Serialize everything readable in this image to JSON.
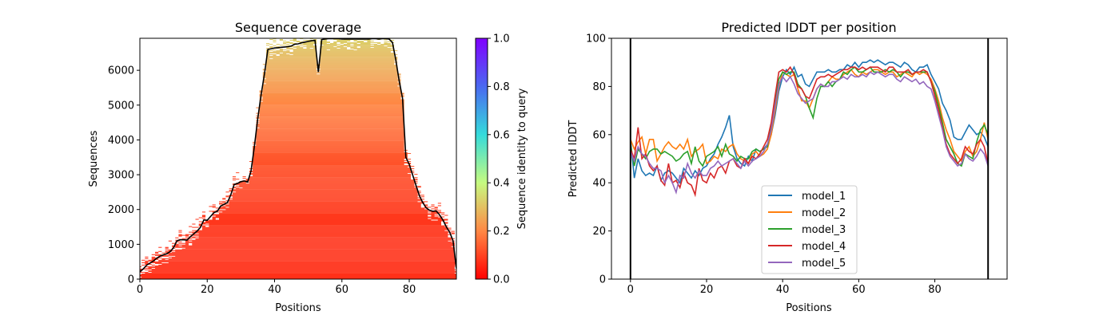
{
  "figure": {
    "background": "#ffffff"
  },
  "chart_data": [
    {
      "type": "heatmap",
      "title": "Sequence coverage",
      "xlabel": "Positions",
      "ylabel": "Sequences",
      "colorbar_label": "Sequence identity to query",
      "colormap": "rainbow_r",
      "xlim": [
        0,
        94
      ],
      "ylim": [
        0,
        6920
      ],
      "xticks": [
        0,
        20,
        40,
        60,
        80
      ],
      "yticks": [
        0,
        1000,
        2000,
        3000,
        4000,
        5000,
        6000
      ],
      "colorbar_ticks": [
        "0.0",
        "0.2",
        "0.4",
        "0.6",
        "0.8",
        "1.0"
      ],
      "coverage_line": {
        "color": "#000000",
        "x": [
          0,
          1,
          2,
          3,
          4,
          5,
          6,
          7,
          8,
          9,
          10,
          11,
          12,
          13,
          14,
          15,
          16,
          17,
          18,
          19,
          20,
          21,
          22,
          23,
          24,
          25,
          26,
          27,
          28,
          29,
          30,
          31,
          32,
          33,
          34,
          35,
          36,
          37,
          38,
          39,
          40,
          41,
          42,
          43,
          44,
          45,
          46,
          47,
          48,
          49,
          50,
          51,
          52,
          53,
          54,
          55,
          56,
          57,
          58,
          59,
          60,
          61,
          62,
          63,
          64,
          65,
          66,
          67,
          68,
          69,
          70,
          71,
          72,
          73,
          74,
          75,
          76,
          77,
          78,
          79,
          80,
          81,
          82,
          83,
          84,
          85,
          86,
          87,
          88,
          89,
          90,
          91,
          92,
          93,
          94
        ],
        "y": [
          210,
          290,
          400,
          460,
          520,
          600,
          660,
          700,
          730,
          790,
          900,
          1100,
          1130,
          1130,
          1120,
          1220,
          1300,
          1380,
          1490,
          1700,
          1690,
          1800,
          1910,
          1950,
          2100,
          2150,
          2200,
          2420,
          2720,
          2750,
          2800,
          2820,
          2790,
          3100,
          3800,
          4600,
          5300,
          5900,
          6600,
          6620,
          6640,
          6650,
          6660,
          6670,
          6680,
          6700,
          6750,
          6760,
          6790,
          6810,
          6830,
          6850,
          6860,
          5950,
          6880,
          6900,
          6910,
          6910,
          6910,
          6910,
          6900,
          6900,
          6900,
          6900,
          6900,
          6900,
          6900,
          6900,
          6900,
          6910,
          6910,
          6900,
          6910,
          6910,
          6900,
          6800,
          6300,
          5700,
          5200,
          3500,
          3300,
          3000,
          2700,
          2400,
          2200,
          2050,
          1980,
          1950,
          1960,
          1850,
          1700,
          1500,
          1350,
          1100,
          300
        ]
      }
    },
    {
      "type": "line",
      "title": "Predicted lDDT per position",
      "xlabel": "Positions",
      "ylabel": "Predicted lDDT",
      "xlim": [
        -5,
        99
      ],
      "ylim": [
        0,
        100
      ],
      "xticks": [
        0,
        20,
        40,
        60,
        80
      ],
      "yticks": [
        0,
        20,
        40,
        60,
        80,
        100
      ],
      "vlines": [
        0,
        94
      ],
      "legend_position": "lower center",
      "x_start": 0,
      "series": [
        {
          "name": "model_1",
          "color": "#1f77b4",
          "values": [
            58,
            42,
            50,
            45,
            43,
            44,
            43,
            47,
            41,
            44,
            45,
            44,
            42,
            40,
            46,
            44,
            42,
            45,
            43,
            46,
            47,
            50,
            52,
            56,
            59,
            63,
            68,
            55,
            50,
            48,
            47,
            51,
            49,
            54,
            53,
            54,
            56,
            60,
            68,
            78,
            84,
            87,
            85,
            88,
            84,
            85,
            81,
            80,
            83,
            86,
            86,
            86,
            87,
            86,
            86,
            87,
            87,
            89,
            88,
            90,
            88,
            90,
            90,
            91,
            90,
            91,
            90,
            89,
            90,
            90,
            89,
            88,
            90,
            89,
            87,
            86,
            88,
            88,
            89,
            85,
            82,
            79,
            73,
            70,
            66,
            59,
            58,
            58,
            61,
            64,
            62,
            60,
            61,
            59,
            55
          ]
        },
        {
          "name": "model_2",
          "color": "#ff7f0e",
          "values": [
            58,
            54,
            57,
            59,
            52,
            58,
            58,
            49,
            52,
            55,
            57,
            55,
            54,
            56,
            54,
            58,
            51,
            53,
            54,
            56,
            48,
            49,
            51,
            50,
            54,
            53,
            55,
            56,
            52,
            50,
            49,
            48,
            52,
            53,
            51,
            52,
            54,
            60,
            70,
            80,
            86,
            85,
            84,
            85,
            79,
            74,
            74,
            71,
            75,
            79,
            81,
            80,
            82,
            84,
            83,
            83,
            85,
            86,
            87,
            85,
            84,
            86,
            85,
            86,
            87,
            87,
            86,
            85,
            86,
            86,
            84,
            85,
            86,
            85,
            84,
            86,
            85,
            86,
            85,
            83,
            79,
            74,
            67,
            62,
            58,
            53,
            51,
            49,
            53,
            55,
            51,
            53,
            58,
            65,
            58
          ]
        },
        {
          "name": "model_3",
          "color": "#2ca02c",
          "values": [
            56,
            47,
            54,
            52,
            50,
            53,
            54,
            54,
            52,
            53,
            52,
            51,
            49,
            50,
            52,
            53,
            48,
            55,
            49,
            47,
            51,
            52,
            53,
            55,
            51,
            56,
            52,
            51,
            49,
            51,
            50,
            50,
            53,
            54,
            53,
            54,
            55,
            64,
            74,
            83,
            86,
            85,
            86,
            86,
            81,
            79,
            76,
            71,
            67,
            75,
            80,
            80,
            82,
            80,
            82,
            83,
            86,
            85,
            87,
            88,
            86,
            86,
            87,
            88,
            86,
            86,
            86,
            87,
            86,
            87,
            86,
            84,
            86,
            86,
            85,
            86,
            86,
            86,
            86,
            82,
            78,
            72,
            65,
            58,
            55,
            52,
            48,
            47,
            52,
            51,
            50,
            57,
            62,
            64,
            60
          ]
        },
        {
          "name": "model_4",
          "color": "#d62728",
          "values": [
            54,
            50,
            63,
            50,
            52,
            47,
            45,
            47,
            41,
            39,
            48,
            40,
            41,
            38,
            44,
            40,
            39,
            35,
            46,
            41,
            40,
            44,
            42,
            46,
            47,
            44,
            49,
            50,
            47,
            46,
            50,
            48,
            51,
            50,
            52,
            55,
            58,
            65,
            76,
            86,
            87,
            86,
            88,
            85,
            80,
            79,
            76,
            75,
            79,
            83,
            84,
            84,
            85,
            84,
            85,
            86,
            87,
            87,
            88,
            88,
            87,
            88,
            87,
            88,
            88,
            88,
            87,
            86,
            88,
            88,
            86,
            86,
            86,
            87,
            85,
            86,
            86,
            87,
            86,
            82,
            76,
            70,
            63,
            56,
            52,
            50,
            48,
            50,
            55,
            53,
            52,
            56,
            58,
            55,
            48
          ]
        },
        {
          "name": "model_5",
          "color": "#9467bd",
          "values": [
            53,
            49,
            55,
            52,
            51,
            48,
            46,
            46,
            45,
            40,
            43,
            40,
            36,
            43,
            42,
            48,
            44,
            42,
            45,
            43,
            43,
            46,
            47,
            49,
            47,
            48,
            49,
            50,
            48,
            46,
            49,
            47,
            49,
            50,
            51,
            53,
            56,
            62,
            72,
            81,
            84,
            82,
            84,
            81,
            77,
            75,
            73,
            74,
            75,
            79,
            81,
            80,
            80,
            82,
            82,
            83,
            84,
            83,
            85,
            84,
            84,
            85,
            84,
            86,
            85,
            86,
            85,
            84,
            85,
            85,
            83,
            82,
            84,
            83,
            82,
            83,
            81,
            82,
            80,
            79,
            74,
            68,
            62,
            55,
            51,
            49,
            47,
            48,
            52,
            50,
            49,
            51,
            54,
            52,
            47
          ]
        }
      ]
    }
  ]
}
